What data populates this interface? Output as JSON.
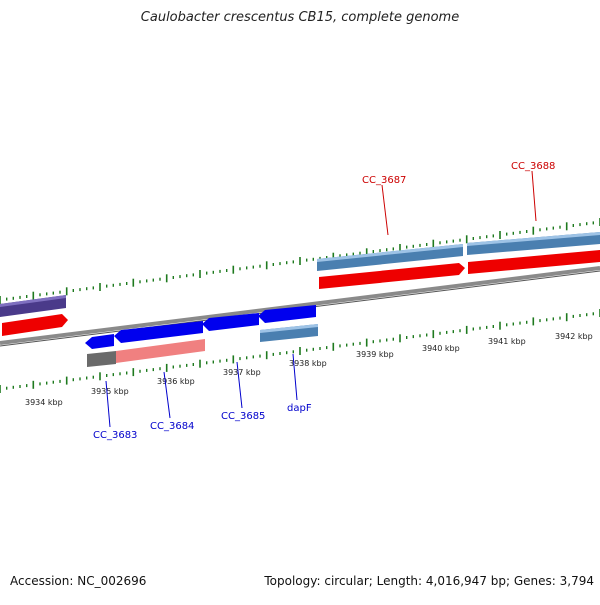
{
  "title": "Caulobacter crescentus CB15, complete genome",
  "footer": {
    "accession": "Accession: NC_002696",
    "summary": "Topology: circular; Length: 4,016,947 bp; Genes: 3,794"
  },
  "colors": {
    "backbone": "#8a8a8a",
    "tick": "#1e7a1e",
    "gene_blue": "#0000ee",
    "gene_steel": "#4a7fb0",
    "gene_red": "#ee0000",
    "gene_pink": "#f08080",
    "gene_grey": "#6a6a6a",
    "gene_purple": "#4a3a8a",
    "label_red": "#cc0000",
    "label_blue": "#0000cc"
  },
  "tick_labels": [
    "3934 kbp",
    "3935 kbp",
    "3936 kbp",
    "3937 kbp",
    "3938 kbp",
    "3939 kbp",
    "3940 kbp",
    "3941 kbp",
    "3942 kbp"
  ],
  "gene_labels": [
    {
      "text": "CC_3687",
      "color": "label_red"
    },
    {
      "text": "CC_3688",
      "color": "label_red"
    },
    {
      "text": "CC_3683",
      "color": "label_blue"
    },
    {
      "text": "CC_3684",
      "color": "label_blue"
    },
    {
      "text": "CC_3685",
      "color": "label_blue"
    },
    {
      "text": "dapF",
      "color": "label_blue"
    }
  ]
}
